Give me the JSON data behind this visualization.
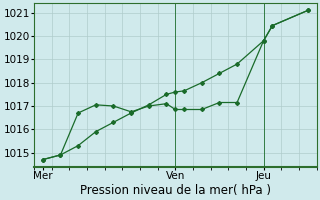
{
  "xlabel": "Pression niveau de la mer( hPa )",
  "background_color": "#d0eaec",
  "grid_color": "#b0cccc",
  "line_color": "#1a6b2a",
  "spine_color": "#2d6e2d",
  "ylim": [
    1014.4,
    1021.4
  ],
  "xlim": [
    0,
    16
  ],
  "day_labels": [
    "Mer",
    "Ven",
    "Jeu"
  ],
  "day_positions": [
    0.5,
    8.0,
    13.0
  ],
  "series1_x": [
    0.5,
    1.5,
    2.5,
    3.5,
    4.5,
    5.5,
    6.5,
    7.5,
    8.0,
    8.5,
    9.5,
    10.5,
    11.5,
    13.0,
    13.5,
    15.5
  ],
  "series1_y": [
    1014.7,
    1014.9,
    1016.7,
    1017.05,
    1017.0,
    1016.75,
    1017.0,
    1017.1,
    1016.85,
    1016.85,
    1016.85,
    1017.15,
    1017.15,
    1019.8,
    1020.45,
    1021.1
  ],
  "series2_x": [
    0.5,
    1.5,
    2.5,
    3.5,
    4.5,
    5.5,
    6.5,
    7.5,
    8.0,
    8.5,
    9.5,
    10.5,
    11.5,
    13.0,
    13.5,
    15.5
  ],
  "series2_y": [
    1014.7,
    1014.9,
    1015.3,
    1015.9,
    1016.3,
    1016.7,
    1017.05,
    1017.5,
    1017.6,
    1017.65,
    1018.0,
    1018.4,
    1018.8,
    1019.8,
    1020.45,
    1021.1
  ],
  "yticks": [
    1015,
    1016,
    1017,
    1018,
    1019,
    1020,
    1021
  ],
  "xticks_minor": 16,
  "vline_positions": [
    8.0,
    13.0
  ],
  "font_size": 7.5,
  "xlabel_fontsize": 8.5
}
